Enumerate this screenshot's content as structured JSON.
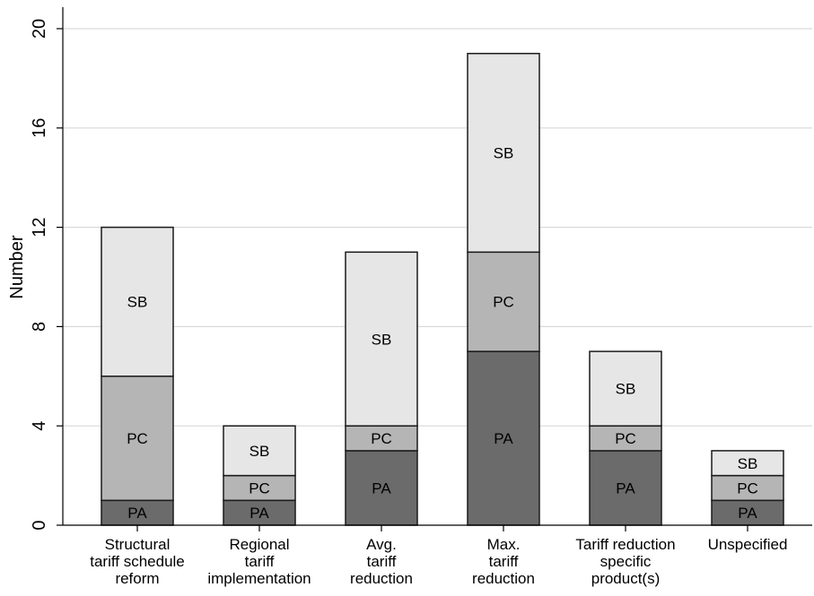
{
  "chart_data": {
    "type": "bar",
    "stacked": true,
    "categories": [
      [
        "Structural",
        "tariff schedule",
        "reform"
      ],
      [
        "Regional",
        "tariff",
        "implementation"
      ],
      [
        "Avg.",
        "tariff",
        "reduction"
      ],
      [
        "Max.",
        "tariff",
        "reduction"
      ],
      [
        "Tariff reduction",
        "specific",
        "product(s)"
      ],
      [
        "Unspecified"
      ]
    ],
    "series": [
      {
        "name": "PA",
        "values": [
          1,
          1,
          3,
          7,
          3,
          1
        ],
        "color": "#6b6b6b"
      },
      {
        "name": "PC",
        "values": [
          5,
          1,
          1,
          4,
          1,
          1
        ],
        "color": "#b5b5b5"
      },
      {
        "name": "SB",
        "values": [
          6,
          2,
          7,
          8,
          3,
          1
        ],
        "color": "#e6e6e6"
      }
    ],
    "title": "",
    "xlabel": "",
    "ylabel": "Number",
    "ylim": [
      0,
      20
    ],
    "yticks": [
      0,
      4,
      8,
      12,
      16,
      20
    ],
    "grid": true,
    "legend": "none (segment labels inside bars)"
  }
}
